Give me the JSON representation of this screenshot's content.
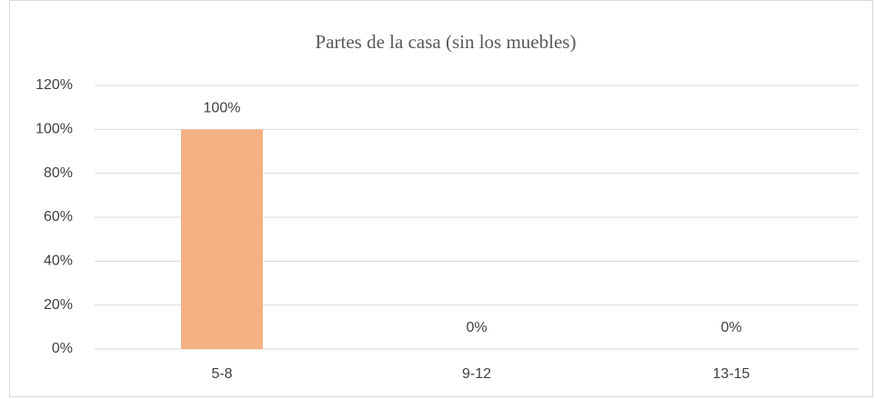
{
  "chart_data": {
    "type": "bar",
    "title": "Partes de la casa (sin los muebles)",
    "categories": [
      "5-8",
      "9-12",
      "13-15"
    ],
    "values": [
      100,
      0,
      0
    ],
    "value_labels": [
      "100%",
      "0%",
      "0%"
    ],
    "color": "#f4b183",
    "ylim": [
      0,
      120
    ],
    "yticks": [
      {
        "value": 0,
        "label": "0%"
      },
      {
        "value": 20,
        "label": "20%"
      },
      {
        "value": 40,
        "label": "40%"
      },
      {
        "value": 60,
        "label": "60%"
      },
      {
        "value": 80,
        "label": "80%"
      },
      {
        "value": 100,
        "label": "100%"
      },
      {
        "value": 120,
        "label": "120%"
      }
    ],
    "grid": true
  }
}
